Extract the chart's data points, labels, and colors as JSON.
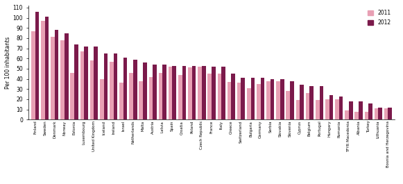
{
  "countries": [
    "Finland",
    "Sweden",
    "Denmark",
    "Norway",
    "Estonia",
    "Luxembourg",
    "United Kingdom",
    "Iceland",
    "Ireland",
    "Israel",
    "Netherlands",
    "Malta",
    "Austria",
    "Latvia",
    "Spain",
    "Croatia",
    "Poland",
    "Czech Republic",
    "France",
    "Italy",
    "Greece",
    "Switzerland",
    "Bulgaria",
    "Germany",
    "Serbia",
    "Slovakia",
    "Slovenia",
    "Cyprus",
    "Belgium",
    "Portugal",
    "Hungary",
    "Romania",
    "TFYR Macedonia",
    "Albania",
    "Turkey",
    "Lithuania",
    "Bosnia and Herzegovina"
  ],
  "values_2011": [
    87,
    97,
    81,
    78,
    46,
    67,
    58,
    40,
    57,
    36,
    46,
    38,
    42,
    46,
    52,
    44,
    51,
    52,
    45,
    45,
    37,
    36,
    31,
    35,
    38,
    38,
    28,
    19,
    26,
    19,
    20,
    20,
    9,
    8,
    8,
    11,
    11
  ],
  "values_2012": [
    106,
    101,
    88,
    85,
    74,
    72,
    72,
    65,
    65,
    61,
    59,
    56,
    54,
    54,
    53,
    53,
    53,
    53,
    52,
    52,
    45,
    41,
    41,
    41,
    40,
    40,
    38,
    34,
    33,
    33,
    24,
    23,
    18,
    18,
    16,
    12,
    12
  ],
  "color_2011": "#e8a0b4",
  "color_2012": "#7b1a4b",
  "ylabel": "Per 100 inhabitants",
  "ylim": [
    0,
    112
  ],
  "yticks": [
    0,
    10,
    20,
    30,
    40,
    50,
    60,
    70,
    80,
    90,
    100,
    110
  ],
  "legend_2011": "2011",
  "legend_2012": "2012"
}
